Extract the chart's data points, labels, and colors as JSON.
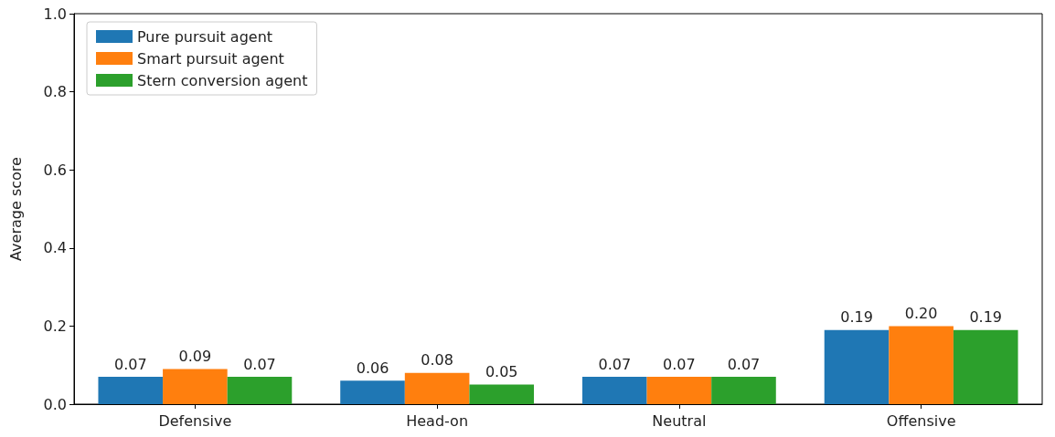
{
  "chart_data": {
    "type": "bar",
    "ylabel": "Average score",
    "categories": [
      "Defensive",
      "Head-on",
      "Neutral",
      "Offensive"
    ],
    "series": [
      {
        "name": "Pure pursuit agent",
        "color": "#1f77b4",
        "values": [
          0.07,
          0.06,
          0.07,
          0.19
        ],
        "value_labels": [
          "0.07",
          "0.06",
          "0.07",
          "0.19"
        ]
      },
      {
        "name": "Smart pursuit agent",
        "color": "#ff7f0e",
        "values": [
          0.09,
          0.08,
          0.07,
          0.2
        ],
        "value_labels": [
          "0.09",
          "0.08",
          "0.07",
          "0.20"
        ]
      },
      {
        "name": "Stern conversion agent",
        "color": "#2ca02c",
        "values": [
          0.07,
          0.05,
          0.07,
          0.19
        ],
        "value_labels": [
          "0.07",
          "0.05",
          "0.07",
          "0.19"
        ]
      }
    ],
    "ylim": [
      0,
      1
    ],
    "yticks": [
      {
        "value": 0,
        "label": "0.0"
      },
      {
        "value": 0.2,
        "label": "0.2"
      },
      {
        "value": 0.4,
        "label": "0.4"
      },
      {
        "value": 0.6,
        "label": "0.6"
      },
      {
        "value": 0.8,
        "label": "0.8"
      },
      {
        "value": 1,
        "label": "1.0"
      }
    ],
    "grid": false,
    "legend": "top left"
  }
}
